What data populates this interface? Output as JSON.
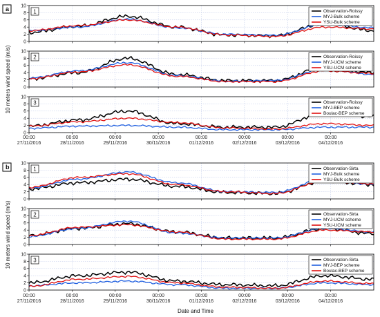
{
  "figure": {
    "ylabel": "10 meters wind speed (m/s)",
    "xlabel": "Date and Time",
    "x_time_labels": [
      "00:00",
      "00:00",
      "00:00",
      "00:00",
      "00:00",
      "00:00",
      "00:00",
      "00:00"
    ],
    "x_date_labels": [
      "27/11/2016",
      "28/11/2016",
      "29/11/2016",
      "30/11/2016",
      "01/12/2016",
      "02/12/2016",
      "03/12/2016",
      "04/12/2016"
    ]
  },
  "colors": {
    "observation": "#000000",
    "myj": "#1f5fe0",
    "ysu": "#e01010",
    "grid": "#b8c4e6"
  },
  "chart_data": [
    {
      "type": "line",
      "group": "a",
      "panel": "1",
      "ylim": [
        0,
        10
      ],
      "yticks": [
        0,
        2,
        4,
        6,
        8,
        10
      ],
      "x": [
        "27/11/2016",
        "28/11/2016",
        "29/11/2016",
        "30/11/2016",
        "01/12/2016",
        "02/12/2016",
        "03/12/2016",
        "04/12/2016"
      ],
      "series": [
        {
          "name": "Observation-Roissy",
          "color": "#000000",
          "values": [
            2.5,
            4.2,
            7.0,
            4.0,
            1.8,
            1.6,
            5.0,
            3.0
          ]
        },
        {
          "name": "MYJ-Bulk scheme",
          "color": "#1f5fe0",
          "values": [
            3.0,
            4.0,
            6.2,
            3.8,
            2.0,
            1.7,
            4.8,
            3.8
          ]
        },
        {
          "name": "YSU-Bulk scheme",
          "color": "#e01010",
          "values": [
            3.0,
            4.4,
            6.0,
            4.0,
            1.8,
            1.4,
            4.0,
            3.5
          ]
        }
      ]
    },
    {
      "type": "line",
      "group": "a",
      "panel": "2",
      "ylim": [
        0,
        10
      ],
      "yticks": [
        0,
        2,
        4,
        6,
        8,
        10
      ],
      "x": [
        "27/11/2016",
        "28/11/2016",
        "29/11/2016",
        "30/11/2016",
        "01/12/2016",
        "02/12/2016",
        "03/12/2016",
        "04/12/2016"
      ],
      "series": [
        {
          "name": "Observation-Roissy",
          "color": "#000000",
          "values": [
            2.3,
            4.0,
            8.0,
            3.5,
            1.8,
            1.8,
            5.5,
            4.0
          ]
        },
        {
          "name": "MYJ-UCM scheme",
          "color": "#1f5fe0",
          "values": [
            2.5,
            4.5,
            6.8,
            3.2,
            1.6,
            1.8,
            5.0,
            3.5
          ]
        },
        {
          "name": "YSU-UCM scheme",
          "color": "#e01010",
          "values": [
            2.3,
            4.2,
            6.2,
            3.0,
            1.5,
            1.5,
            4.5,
            3.8
          ]
        }
      ]
    },
    {
      "type": "line",
      "group": "a",
      "panel": "3",
      "ylim": [
        0,
        10
      ],
      "yticks": [
        0,
        2,
        4,
        6,
        8,
        10
      ],
      "x": [
        "27/11/2016",
        "28/11/2016",
        "29/11/2016",
        "30/11/2016",
        "01/12/2016",
        "02/12/2016",
        "03/12/2016",
        "04/12/2016"
      ],
      "series": [
        {
          "name": "Observation-Roissy",
          "color": "#000000",
          "values": [
            1.8,
            3.5,
            6.0,
            2.5,
            1.5,
            1.5,
            5.5,
            4.5
          ]
        },
        {
          "name": "MYJ-BEP scheme",
          "color": "#1f5fe0",
          "values": [
            1.2,
            1.8,
            2.0,
            1.5,
            0.8,
            0.8,
            1.5,
            1.5
          ]
        },
        {
          "name": "Boulac-BEP scheme",
          "color": "#e01010",
          "values": [
            1.8,
            3.0,
            4.0,
            2.8,
            1.3,
            1.0,
            2.5,
            2.0
          ]
        }
      ]
    },
    {
      "type": "line",
      "group": "b",
      "panel": "1",
      "ylim": [
        0,
        10
      ],
      "yticks": [
        0,
        2,
        4,
        6,
        8,
        10
      ],
      "x": [
        "27/11/2016",
        "28/11/2016",
        "29/11/2016",
        "30/11/2016",
        "01/12/2016",
        "02/12/2016",
        "03/12/2016",
        "04/12/2016"
      ],
      "series": [
        {
          "name": "Observation-Sirta",
          "color": "#000000",
          "values": [
            2.8,
            4.5,
            5.5,
            3.5,
            1.8,
            1.5,
            5.0,
            4.0
          ]
        },
        {
          "name": "MYJ-Bulk scheme",
          "color": "#1f5fe0",
          "values": [
            3.0,
            5.5,
            7.5,
            4.5,
            2.0,
            1.8,
            5.5,
            4.0
          ]
        },
        {
          "name": "YSU-Bulk scheme",
          "color": "#e01010",
          "values": [
            3.2,
            6.0,
            7.0,
            4.0,
            2.0,
            1.5,
            5.0,
            4.2
          ]
        }
      ]
    },
    {
      "type": "line",
      "group": "b",
      "panel": "2",
      "ylim": [
        0,
        10
      ],
      "yticks": [
        0,
        2,
        4,
        6,
        8,
        10
      ],
      "x": [
        "27/11/2016",
        "28/11/2016",
        "29/11/2016",
        "30/11/2016",
        "01/12/2016",
        "02/12/2016",
        "03/12/2016",
        "04/12/2016"
      ],
      "series": [
        {
          "name": "Observation-Sirta",
          "color": "#000000",
          "values": [
            2.5,
            4.5,
            5.8,
            3.5,
            1.8,
            1.8,
            4.5,
            3.0
          ]
        },
        {
          "name": "MYJ-UCM scheme",
          "color": "#1f5fe0",
          "values": [
            2.2,
            4.5,
            6.5,
            3.2,
            1.8,
            1.8,
            4.5,
            3.5
          ]
        },
        {
          "name": "YSU-UCM scheme",
          "color": "#e01010",
          "values": [
            2.5,
            4.8,
            5.5,
            3.5,
            1.5,
            1.5,
            4.0,
            3.5
          ]
        }
      ]
    },
    {
      "type": "line",
      "group": "b",
      "panel": "3",
      "ylim": [
        0,
        10
      ],
      "yticks": [
        0,
        2,
        4,
        6,
        8,
        10
      ],
      "x": [
        "27/11/2016",
        "28/11/2016",
        "29/11/2016",
        "30/11/2016",
        "01/12/2016",
        "02/12/2016",
        "03/12/2016",
        "04/12/2016"
      ],
      "series": [
        {
          "name": "Observation-Sirta",
          "color": "#000000",
          "values": [
            2.0,
            4.0,
            5.0,
            2.5,
            1.5,
            1.2,
            4.0,
            3.0
          ]
        },
        {
          "name": "MYJ-BEP scheme",
          "color": "#1f5fe0",
          "values": [
            1.2,
            2.0,
            2.5,
            1.5,
            0.5,
            0.5,
            2.0,
            1.5
          ]
        },
        {
          "name": "Boulac-BEP scheme",
          "color": "#e01010",
          "values": [
            1.0,
            3.0,
            3.8,
            2.0,
            0.8,
            0.5,
            2.5,
            1.8
          ]
        }
      ]
    }
  ]
}
